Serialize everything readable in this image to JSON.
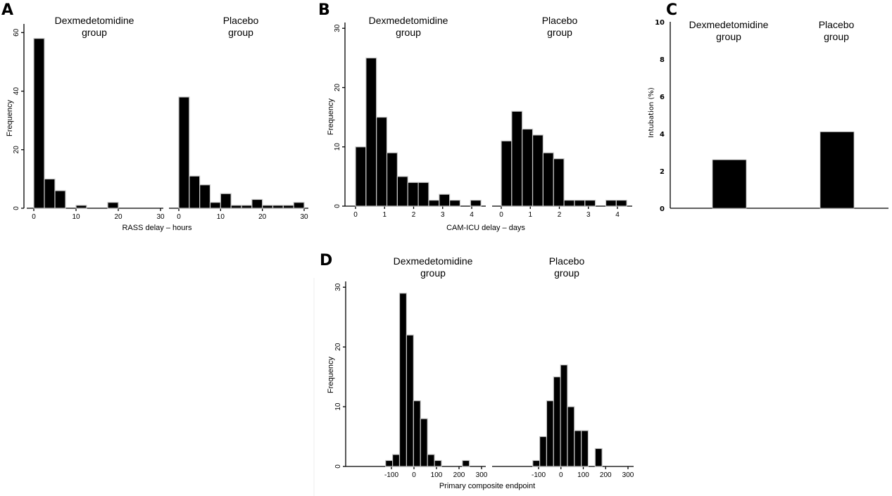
{
  "chart_data": [
    {
      "panel": "A",
      "type": "bar",
      "subtype": "histogram",
      "xlabel": "RASS delay – hours",
      "ylabel": "Frequency",
      "ylim": [
        0,
        62
      ],
      "yticks": [
        0,
        20,
        40,
        60
      ],
      "xlim": [
        -2.5,
        31
      ],
      "xticks": [
        0,
        10,
        20,
        30
      ],
      "bin_width": 2.5,
      "series": [
        {
          "name": "Dexmedetomidine group",
          "title_lines": [
            "Dexmedetomidine",
            "group"
          ],
          "bin_starts": [
            0,
            2.5,
            5,
            7.5,
            10,
            12.5,
            15,
            17.5,
            20,
            22.5,
            25,
            27.5
          ],
          "values": [
            58,
            10,
            6,
            0,
            1,
            0,
            0,
            2,
            0,
            0,
            0,
            0
          ]
        },
        {
          "name": "Placebo group",
          "title_lines": [
            "Placebo",
            "group"
          ],
          "bin_starts": [
            0,
            2.5,
            5,
            7.5,
            10,
            12.5,
            15,
            17.5,
            20,
            22.5,
            25,
            27.5
          ],
          "values": [
            38,
            11,
            8,
            2,
            5,
            1,
            1,
            3,
            1,
            1,
            1,
            2
          ]
        }
      ]
    },
    {
      "panel": "B",
      "type": "bar",
      "subtype": "histogram",
      "xlabel": "CAM-ICU delay – days",
      "ylabel": "Frequency",
      "ylim": [
        0,
        30.5
      ],
      "yticks": [
        0,
        10,
        20,
        30
      ],
      "xlim": [
        -0.35,
        4.4
      ],
      "xticks": [
        0,
        1,
        2,
        3,
        4
      ],
      "bin_width": 0.36,
      "series": [
        {
          "name": "Dexmedetomidine group",
          "title_lines": [
            "Dexmedetomidine",
            "group"
          ],
          "bin_starts": [
            0,
            0.36,
            0.72,
            1.08,
            1.44,
            1.8,
            2.16,
            2.52,
            2.88,
            3.24,
            3.6,
            3.96
          ],
          "values": [
            10,
            25,
            15,
            9,
            5,
            4,
            4,
            1,
            2,
            1,
            0,
            1
          ]
        },
        {
          "name": "Placebo group",
          "title_lines": [
            "Placebo",
            "group"
          ],
          "bin_starts": [
            0,
            0.36,
            0.72,
            1.08,
            1.44,
            1.8,
            2.16,
            2.52,
            2.88,
            3.24,
            3.6,
            3.96
          ],
          "values": [
            11,
            16,
            13,
            12,
            9,
            8,
            1,
            1,
            1,
            0,
            1,
            1
          ]
        }
      ]
    },
    {
      "panel": "C",
      "type": "bar",
      "xlabel": "",
      "ylabel": "Intubation (%)",
      "ylim": [
        0,
        10
      ],
      "yticks": [
        0,
        2,
        4,
        6,
        8,
        10
      ],
      "categories": [
        "Dexmedetomidine group",
        "Placebo group"
      ],
      "title_lines": [
        [
          "Dexmedetomidine",
          "group"
        ],
        [
          "Placebo",
          "group"
        ]
      ],
      "values": [
        2.6,
        4.1
      ]
    },
    {
      "panel": "D",
      "type": "bar",
      "subtype": "histogram",
      "xlabel": "Primary composite endpoint",
      "ylabel": "Frequency",
      "ylim": [
        0,
        30.5
      ],
      "yticks": [
        0,
        10,
        20,
        30
      ],
      "xlim": [
        -155,
        315
      ],
      "xticks": [
        -100,
        0,
        100,
        200,
        300
      ],
      "bin_width": 31,
      "series": [
        {
          "name": "Dexmedetomidine group",
          "title_lines": [
            "Dexmedetomidine",
            "group"
          ],
          "bin_starts": [
            -126,
            -95,
            -64,
            -33,
            -2,
            29,
            60,
            91,
            122,
            153,
            184,
            215
          ],
          "values": [
            1,
            2,
            29,
            22,
            11,
            8,
            2,
            1,
            0,
            0,
            0,
            1
          ]
        },
        {
          "name": "Placebo group",
          "title_lines": [
            "Placebo",
            "group"
          ],
          "bin_starts": [
            -126,
            -95,
            -64,
            -33,
            -2,
            29,
            60,
            91,
            122,
            153
          ],
          "values": [
            1,
            5,
            11,
            15,
            17,
            10,
            6,
            6,
            0,
            3
          ]
        }
      ]
    }
  ],
  "labels": {
    "panel_a": "A",
    "panel_b": "B",
    "panel_c": "C",
    "panel_d": "D"
  }
}
